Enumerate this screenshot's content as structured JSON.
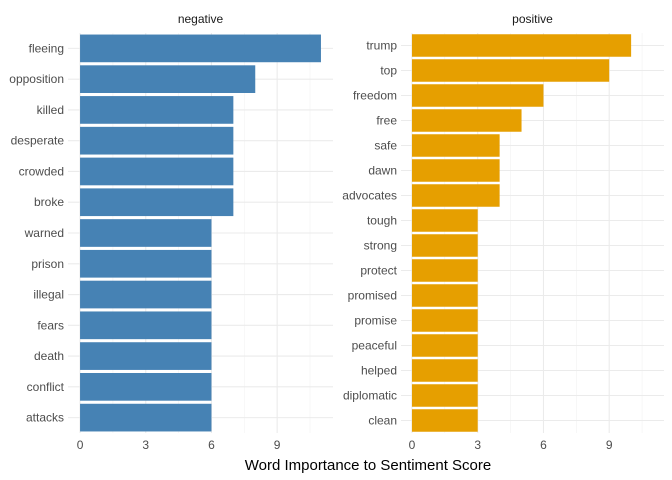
{
  "chart_data": {
    "type": "bar",
    "orientation": "horizontal",
    "xlabel": "Word Importance to Sentiment Score",
    "ylabel": "",
    "grid": true,
    "xticks": [
      0,
      3,
      6,
      9
    ],
    "facets": [
      {
        "title": "negative",
        "color": "#4682B4",
        "xlim": [
          -0.55,
          11.55
        ],
        "categories": [
          "fleeing",
          "opposition",
          "killed",
          "desperate",
          "crowded",
          "broke",
          "warned",
          "prison",
          "illegal",
          "fears",
          "death",
          "conflict",
          "attacks"
        ],
        "values": [
          11,
          8,
          7,
          7,
          7,
          7,
          6,
          6,
          6,
          6,
          6,
          6,
          6
        ]
      },
      {
        "title": "positive",
        "color": "#E69F00",
        "xlim": [
          -0.5,
          11.5
        ],
        "categories": [
          "trump",
          "top",
          "freedom",
          "free",
          "safe",
          "dawn",
          "advocates",
          "tough",
          "strong",
          "protect",
          "promised",
          "promise",
          "peaceful",
          "helped",
          "diplomatic",
          "clean"
        ],
        "values": [
          10,
          9,
          6,
          5,
          4,
          4,
          4,
          3,
          3,
          3,
          3,
          3,
          3,
          3,
          3,
          3
        ]
      }
    ]
  }
}
